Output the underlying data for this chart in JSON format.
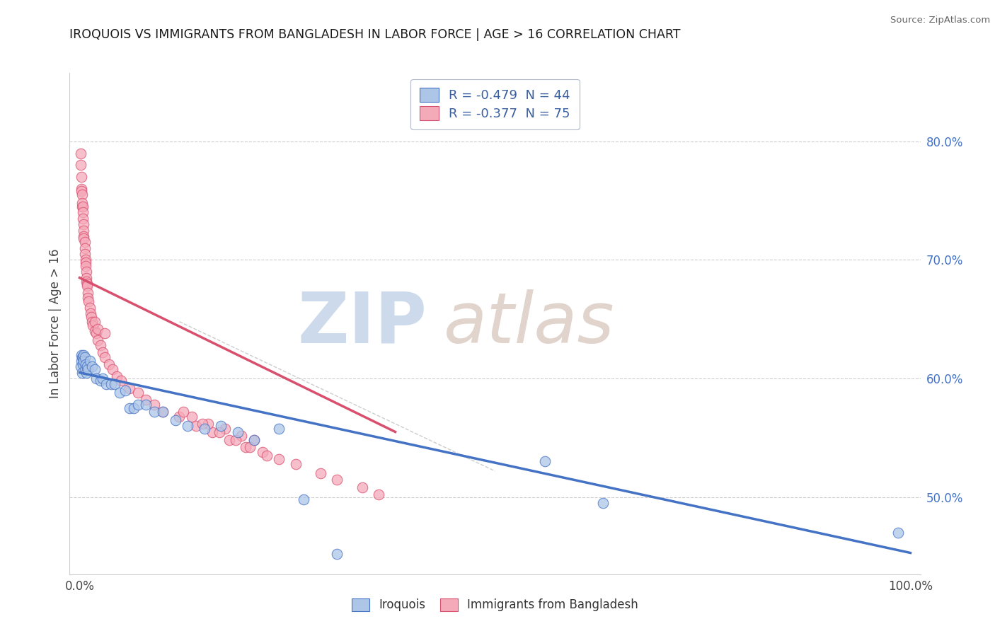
{
  "title": "IROQUOIS VS IMMIGRANTS FROM BANGLADESH IN LABOR FORCE | AGE > 16 CORRELATION CHART",
  "source": "Source: ZipAtlas.com",
  "ylabel": "In Labor Force | Age > 16",
  "legend_r1": "R = -0.479  N = 44",
  "legend_r2": "R = -0.377  N = 75",
  "legend_label1": "Iroquois",
  "legend_label2": "Immigrants from Bangladesh",
  "color_blue": "#adc6e8",
  "color_pink": "#f5aaba",
  "line_blue": "#4472c4",
  "line_pink": "#d94f6e",
  "right_yticks": [
    "80.0%",
    "70.0%",
    "60.0%",
    "50.0%"
  ],
  "right_ytick_vals": [
    0.8,
    0.7,
    0.6,
    0.5
  ],
  "ylim": [
    0.435,
    0.858
  ],
  "xlim": [
    -0.012,
    1.012
  ],
  "blue_x": [
    0.001,
    0.002,
    0.002,
    0.003,
    0.003,
    0.004,
    0.004,
    0.005,
    0.005,
    0.006,
    0.006,
    0.007,
    0.008,
    0.009,
    0.01,
    0.012,
    0.015,
    0.018,
    0.02,
    0.025,
    0.028,
    0.032,
    0.038,
    0.042,
    0.048,
    0.055,
    0.06,
    0.065,
    0.07,
    0.08,
    0.09,
    0.1,
    0.115,
    0.13,
    0.15,
    0.17,
    0.19,
    0.21,
    0.24,
    0.27,
    0.31,
    0.56,
    0.63,
    0.985
  ],
  "blue_y": [
    0.61,
    0.615,
    0.62,
    0.605,
    0.618,
    0.612,
    0.618,
    0.62,
    0.615,
    0.618,
    0.608,
    0.612,
    0.605,
    0.61,
    0.608,
    0.615,
    0.61,
    0.608,
    0.6,
    0.598,
    0.6,
    0.595,
    0.595,
    0.595,
    0.588,
    0.59,
    0.575,
    0.575,
    0.578,
    0.578,
    0.572,
    0.572,
    0.565,
    0.56,
    0.558,
    0.56,
    0.555,
    0.548,
    0.558,
    0.498,
    0.452,
    0.53,
    0.495,
    0.47
  ],
  "pink_x": [
    0.001,
    0.001,
    0.002,
    0.002,
    0.002,
    0.003,
    0.003,
    0.003,
    0.004,
    0.004,
    0.004,
    0.005,
    0.005,
    0.005,
    0.005,
    0.006,
    0.006,
    0.006,
    0.007,
    0.007,
    0.007,
    0.008,
    0.008,
    0.008,
    0.009,
    0.009,
    0.01,
    0.01,
    0.011,
    0.012,
    0.013,
    0.014,
    0.015,
    0.016,
    0.018,
    0.02,
    0.022,
    0.025,
    0.028,
    0.03,
    0.035,
    0.04,
    0.045,
    0.05,
    0.06,
    0.07,
    0.08,
    0.09,
    0.1,
    0.12,
    0.14,
    0.16,
    0.18,
    0.2,
    0.22,
    0.24,
    0.26,
    0.29,
    0.31,
    0.34,
    0.36,
    0.195,
    0.21,
    0.175,
    0.155,
    0.135,
    0.125,
    0.148,
    0.168,
    0.188,
    0.205,
    0.225,
    0.018,
    0.022,
    0.03
  ],
  "pink_y": [
    0.79,
    0.78,
    0.77,
    0.76,
    0.758,
    0.755,
    0.745,
    0.748,
    0.745,
    0.74,
    0.735,
    0.73,
    0.725,
    0.72,
    0.718,
    0.715,
    0.71,
    0.705,
    0.7,
    0.698,
    0.695,
    0.69,
    0.685,
    0.682,
    0.68,
    0.678,
    0.672,
    0.668,
    0.665,
    0.66,
    0.655,
    0.652,
    0.648,
    0.645,
    0.64,
    0.638,
    0.632,
    0.628,
    0.622,
    0.618,
    0.612,
    0.608,
    0.602,
    0.598,
    0.592,
    0.588,
    0.582,
    0.578,
    0.572,
    0.568,
    0.56,
    0.555,
    0.548,
    0.542,
    0.538,
    0.532,
    0.528,
    0.52,
    0.515,
    0.508,
    0.502,
    0.552,
    0.548,
    0.558,
    0.562,
    0.568,
    0.572,
    0.562,
    0.555,
    0.548,
    0.542,
    0.535,
    0.648,
    0.642,
    0.638
  ],
  "blue_line_x0": 0.0,
  "blue_line_y0": 0.605,
  "blue_line_x1": 1.0,
  "blue_line_y1": 0.453,
  "pink_line_x0": 0.0,
  "pink_line_y0": 0.685,
  "pink_line_x1": 0.38,
  "pink_line_y1": 0.555,
  "gray_line_x0": 0.12,
  "gray_line_y0": 0.648,
  "gray_line_x1": 0.5,
  "gray_line_y1": 0.522
}
